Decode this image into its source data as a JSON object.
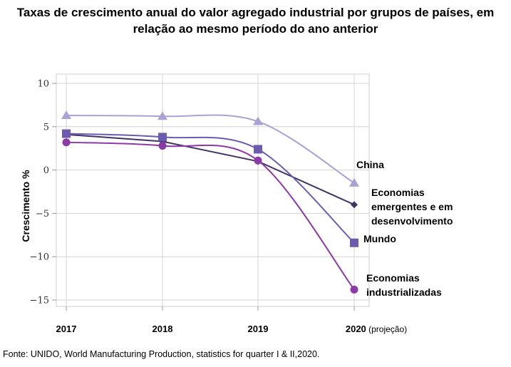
{
  "title_line1": "Taxas de crescimento anual do valor agregado industrial por grupos de países, em",
  "title_line2": "relação ao mesmo período do ano anterior",
  "source": "Fonte: UNIDO, World Manufacturing Production, statistics for quarter I & II,2020.",
  "chart_data": {
    "type": "line",
    "title": "Taxas de crescimento anual do valor agregado industrial por grupos de países, em relação ao mesmo período do ano anterior",
    "xlabel": "",
    "ylabel": "Crescimento %",
    "categories": [
      "2017",
      "2018",
      "2019",
      "2020 (projeção)"
    ],
    "ylim": [
      -15,
      10
    ],
    "yticks": [
      10,
      5,
      0,
      -5,
      -10,
      -15
    ],
    "ytick_labels": [
      "10",
      "5",
      "0",
      "−5",
      "−10",
      "−15"
    ],
    "grid": true,
    "legend": "inline labels at right end of each line",
    "series": [
      {
        "name": "China",
        "label_lines": [
          "China"
        ],
        "values": [
          6.3,
          6.2,
          5.6,
          -1.5
        ],
        "color": "#a9a2d6",
        "marker": "triangle"
      },
      {
        "name": "Economias emergentes e em desenvolvimento",
        "label_lines": [
          "Economias",
          "emergentes e em",
          "desenvolvimento"
        ],
        "values": [
          4.1,
          3.3,
          1.0,
          -4.0
        ],
        "color": "#3d3566",
        "marker": "diamond"
      },
      {
        "name": "Mundo",
        "label_lines": [
          "Mundo"
        ],
        "values": [
          4.2,
          3.8,
          2.4,
          -8.4
        ],
        "color": "#6b5cb0",
        "marker": "square"
      },
      {
        "name": "Economias industrializadas",
        "label_lines": [
          "Economias",
          "industrializadas"
        ],
        "values": [
          3.2,
          2.8,
          1.1,
          -13.8
        ],
        "color": "#8c3aa8",
        "marker": "circle"
      }
    ]
  }
}
